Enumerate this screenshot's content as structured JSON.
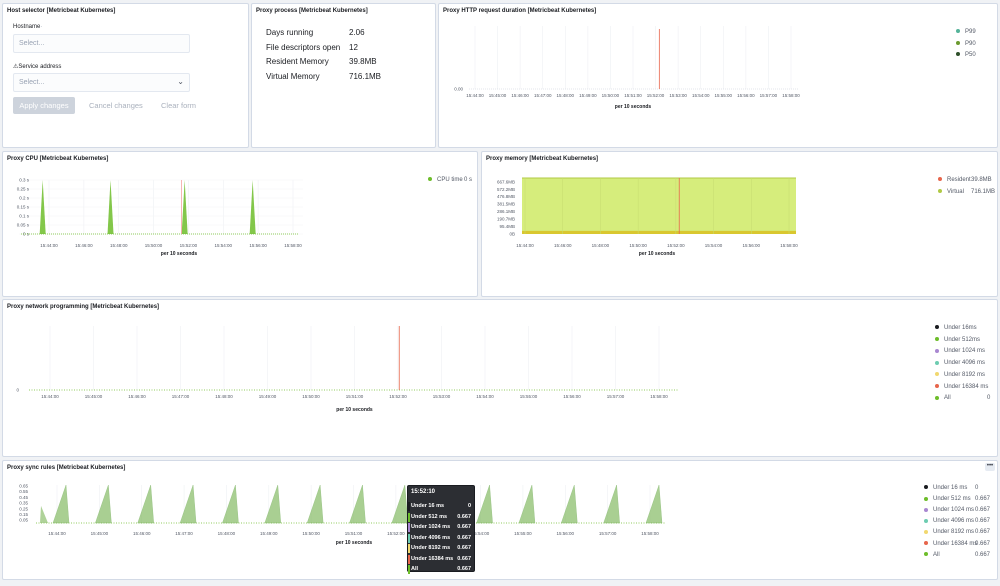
{
  "host_selector": {
    "title": "Host selector [Metricbeat Kubernetes]",
    "hostname_label": "Hostname",
    "hostname_placeholder": "Select...",
    "service_label": "Service address",
    "service_placeholder": "Select...",
    "apply_label": "Apply changes",
    "cancel_label": "Cancel changes",
    "clear_label": "Clear form"
  },
  "proxy_process": {
    "title": "Proxy process [Metricbeat Kubernetes]",
    "rows": [
      {
        "label": "Days running",
        "value": "2.06"
      },
      {
        "label": "File descriptors open",
        "value": "12"
      },
      {
        "label": "Resident Memory",
        "value": "39.8MB"
      },
      {
        "label": "Virtual Memory",
        "value": "716.1MB"
      }
    ]
  },
  "http_duration": {
    "title": "Proxy HTTP request duration [Metricbeat Kubernetes]",
    "xlabel": "per 10 seconds",
    "legend": [
      {
        "name": "P99",
        "color": "#54b399"
      },
      {
        "name": "P90",
        "color": "#6b9a2e"
      },
      {
        "name": "P50",
        "color": "#2e4f2a"
      }
    ]
  },
  "proxy_cpu": {
    "title": "Proxy CPU [Metricbeat Kubernetes]",
    "xlabel": "per 10 seconds",
    "legend": [
      {
        "name": "CPU time",
        "value": "0 s",
        "color": "#6dbd2a"
      }
    ]
  },
  "proxy_memory": {
    "title": "Proxy memory [Metricbeat Kubernetes]",
    "xlabel": "per 10 seconds",
    "legend": [
      {
        "name": "Resident",
        "value": "39.8MB",
        "color": "#e7664c"
      },
      {
        "name": "Virtual",
        "value": "716.1MB",
        "color": "#b0c944"
      }
    ]
  },
  "network_programming": {
    "title": "Proxy network programming [Metricbeat Kubernetes]",
    "xlabel": "per 10 seconds",
    "legend": [
      {
        "name": "Under 16ms",
        "value": "",
        "color": "#1a1c21"
      },
      {
        "name": "Under 512ms",
        "value": "",
        "color": "#6dbd2a"
      },
      {
        "name": "Under 1024 ms",
        "value": "",
        "color": "#a987d1"
      },
      {
        "name": "Under 4096 ms",
        "value": "",
        "color": "#6dccb1"
      },
      {
        "name": "Under 8192 ms",
        "value": "",
        "color": "#f1d86f"
      },
      {
        "name": "Under 16384 ms",
        "value": "",
        "color": "#e7664c"
      },
      {
        "name": "All",
        "value": "0",
        "color": "#6dbd2a"
      }
    ]
  },
  "sync_rules": {
    "title": "Proxy sync rules [Metricbeat Kubernetes]",
    "xlabel": "per 10 seconds",
    "menu_label": "•••",
    "legend": [
      {
        "name": "Under 16 ms",
        "value": "0",
        "color": "#1a1c21"
      },
      {
        "name": "Under 512 ms",
        "value": "0.667",
        "color": "#6dbd2a"
      },
      {
        "name": "Under 1024 ms",
        "value": "0.667",
        "color": "#a987d1"
      },
      {
        "name": "Under 4096 ms",
        "value": "0.667",
        "color": "#6dccb1"
      },
      {
        "name": "Under 8192 ms",
        "value": "0.667",
        "color": "#f1d86f"
      },
      {
        "name": "Under 16384 ms",
        "value": "0.667",
        "color": "#e7664c"
      },
      {
        "name": "All",
        "value": "0.667",
        "color": "#6dbd2a"
      }
    ],
    "tooltip": {
      "time": "15:52:10",
      "rows": [
        {
          "name": "Under 16 ms",
          "value": "0",
          "color": "#1a1c21"
        },
        {
          "name": "Under 512 ms",
          "value": "0.667",
          "color": "#6dbd2a"
        },
        {
          "name": "Under 1024 ms",
          "value": "0.667",
          "color": "#a987d1"
        },
        {
          "name": "Under 4096 ms",
          "value": "0.667",
          "color": "#6dccb1"
        },
        {
          "name": "Under 8192 ms",
          "value": "0.667",
          "color": "#f1d86f"
        },
        {
          "name": "Under 16384 ms",
          "value": "0.667",
          "color": "#e7664c"
        },
        {
          "name": "All",
          "value": "0.667",
          "color": "#6dbd2a"
        }
      ]
    }
  },
  "chart_data": [
    {
      "id": "http_duration",
      "type": "line",
      "title": "Proxy HTTP request duration [Metricbeat Kubernetes]",
      "xlabel": "per 10 seconds",
      "x_ticks": [
        "15:44:00",
        "15:45:00",
        "15:46:00",
        "15:47:00",
        "15:48:00",
        "15:49:00",
        "15:50:00",
        "15:51:00",
        "15:52:00",
        "15:53:00",
        "15:54:00",
        "15:55:00",
        "15:56:00",
        "15:57:00",
        "15:58:00"
      ],
      "y_ticks": [
        "0.00"
      ],
      "marker_at": "15:52:10",
      "series": [
        {
          "name": "P99",
          "values": []
        },
        {
          "name": "P90",
          "values": []
        },
        {
          "name": "P50",
          "values": []
        }
      ],
      "legend_position": "right"
    },
    {
      "id": "proxy_cpu",
      "type": "area",
      "title": "Proxy CPU [Metricbeat Kubernetes]",
      "xlabel": "per 10 seconds",
      "x_ticks": [
        "15:44:00",
        "15:46:00",
        "15:48:00",
        "15:50:00",
        "15:52:00",
        "15:54:00",
        "15:56:00",
        "15:58:00"
      ],
      "y_ticks": [
        "0 s",
        "0.05 s",
        "0.1 s",
        "0.15 s",
        "0.2 s",
        "0.25 s",
        "0.3 s"
      ],
      "ylim": [
        0,
        0.3
      ],
      "x_minutes": [
        0,
        15
      ],
      "marker_at": 8.17,
      "series": [
        {
          "name": "CPU time",
          "spikes_at": [
            1.17,
            4.83,
            8.83,
            12.5
          ],
          "spike_value": 0.3
        }
      ],
      "legend_position": "right"
    },
    {
      "id": "proxy_memory",
      "type": "area",
      "title": "Proxy memory [Metricbeat Kubernetes]",
      "xlabel": "per 10 seconds",
      "x_ticks": [
        "15:44:00",
        "15:46:00",
        "15:48:00",
        "15:50:00",
        "15:52:00",
        "15:54:00",
        "15:56:00",
        "15:58:00"
      ],
      "y_ticks": [
        "0B",
        "95.4MB",
        "190.7MB",
        "286.1MB",
        "381.5MB",
        "476.8MB",
        "572.2MB",
        "667.6MB"
      ],
      "ylim": [
        0,
        716.1
      ],
      "marker_at": 8.17,
      "series": [
        {
          "name": "Resident",
          "value": 39.8
        },
        {
          "name": "Virtual",
          "value": 716.1
        }
      ],
      "legend_position": "right"
    },
    {
      "id": "network_programming",
      "type": "line",
      "title": "Proxy network programming [Metricbeat Kubernetes]",
      "xlabel": "per 10 seconds",
      "x_ticks": [
        "15:44:00",
        "15:45:00",
        "15:46:00",
        "15:47:00",
        "15:48:00",
        "15:49:00",
        "15:50:00",
        "15:51:00",
        "15:52:00",
        "15:53:00",
        "15:54:00",
        "15:55:00",
        "15:56:00",
        "15:57:00",
        "15:58:00"
      ],
      "y_ticks": [
        "0"
      ],
      "marker_at": "15:52:10",
      "series": [
        {
          "name": "All",
          "value": 0
        }
      ],
      "legend_position": "right"
    },
    {
      "id": "sync_rules",
      "type": "area",
      "title": "Proxy sync rules [Metricbeat Kubernetes]",
      "xlabel": "per 10 seconds",
      "x_ticks": [
        "15:44:00",
        "15:45:00",
        "15:46:00",
        "15:47:00",
        "15:48:00",
        "15:49:00",
        "15:50:00",
        "15:51:00",
        "15:52:00",
        "15:53:00",
        "15:54:00",
        "15:55:00",
        "15:56:00",
        "15:57:00",
        "15:58:00"
      ],
      "y_ticks": [
        "0.05",
        "0.1",
        "0.15",
        "0.2",
        "0.25",
        "0.3",
        "0.35",
        "0.4",
        "0.45",
        "0.5",
        "0.55",
        "0.6",
        "0.65"
      ],
      "ylim": [
        0,
        0.667
      ],
      "series": [
        {
          "name": "All",
          "peak_value": 0.667,
          "period_seconds": 60
        }
      ],
      "legend_position": "right"
    }
  ]
}
